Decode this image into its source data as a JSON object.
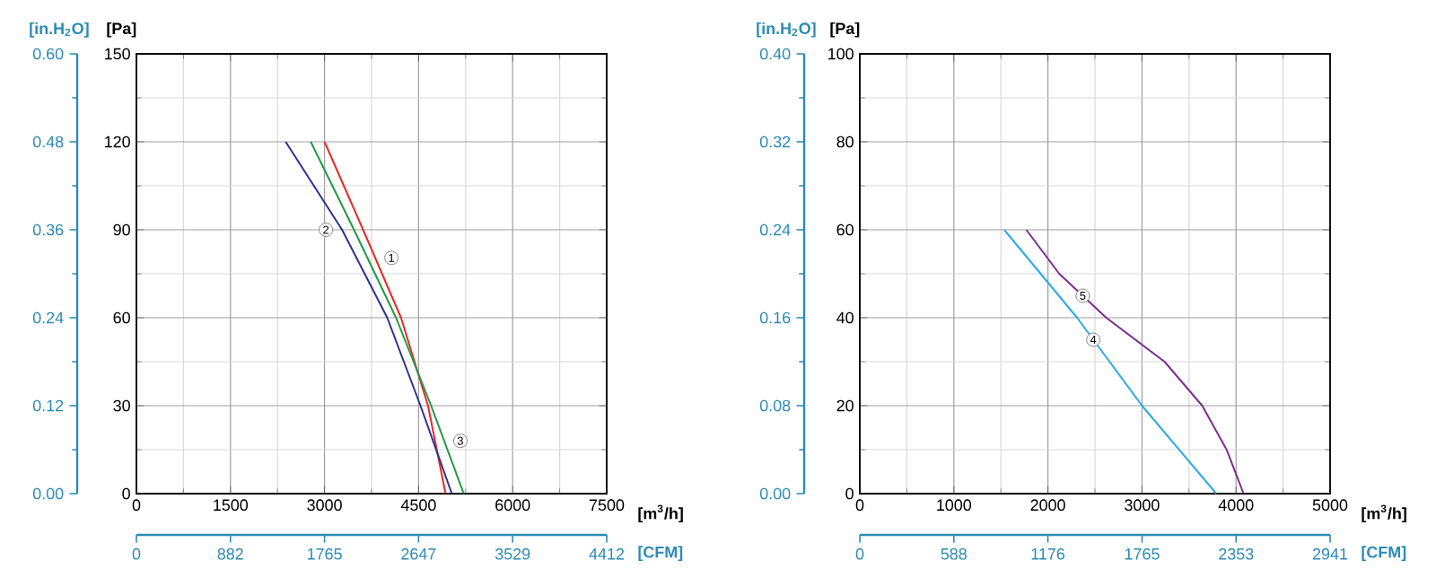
{
  "chart_data": [
    {
      "type": "line",
      "xlabel": "[m$^{3}$/h]",
      "ylabel": "[Pa]",
      "y2label": "[in.H$_{2}$O]",
      "x2label": "[CFM]",
      "xlim": [
        0,
        7500
      ],
      "xticks": [
        0,
        1500,
        3000,
        4500,
        6000,
        7500
      ],
      "ylim": [
        0,
        150
      ],
      "yticks": [
        0,
        30,
        60,
        90,
        120,
        150
      ],
      "y2lim": [
        0,
        0.6
      ],
      "y2ticks": [
        {
          "value": 0,
          "label": "0.00"
        },
        0.12,
        0.24,
        0.36,
        0.48,
        {
          "value": 0.6,
          "label": "0.60"
        }
      ],
      "x2lim": [
        0,
        4412
      ],
      "x2ticks": [
        0,
        882,
        1765,
        2647,
        3529,
        4412
      ],
      "grid": true,
      "series": [
        {
          "name": "1",
          "color": "#e8282b",
          "x": [
            3000,
            3615,
            4220,
            4650,
            4930
          ],
          "values": [
            120,
            90,
            60,
            30,
            0
          ]
        },
        {
          "name": "2",
          "color": "#2e3192",
          "x": [
            2380,
            3280,
            4000,
            4530,
            5030
          ],
          "values": [
            120,
            90,
            60,
            30,
            0
          ]
        },
        {
          "name": "3",
          "color": "#1f9a48",
          "x": [
            2780,
            3470,
            4140,
            4700,
            5220
          ],
          "values": [
            120,
            90,
            60,
            30,
            0
          ]
        }
      ]
    },
    {
      "type": "line",
      "xlabel": "[m$^{3}$/h]",
      "ylabel": "[Pa]",
      "y2label": "[in.H$_{2}$O]",
      "x2label": "[CFM]",
      "xlim": [
        0,
        5000
      ],
      "xticks": [
        0,
        1000,
        2000,
        3000,
        4000,
        5000
      ],
      "ylim": [
        0,
        100
      ],
      "yticks": [
        0,
        20,
        40,
        60,
        80,
        100
      ],
      "y2lim": [
        0,
        0.4
      ],
      "y2ticks": [
        {
          "value": 0,
          "label": "0.00"
        },
        0.08,
        0.16,
        0.24,
        0.32,
        {
          "value": 0.4,
          "label": "0.40"
        }
      ],
      "x2lim": [
        0,
        2941
      ],
      "x2ticks": [
        0,
        588,
        1176,
        1765,
        2353,
        2941
      ],
      "grid": true,
      "series": [
        {
          "name": "4",
          "color": "#29abe2",
          "x": [
            1535,
            2310,
            3000,
            3790
          ],
          "values": [
            60,
            40,
            20,
            0
          ]
        },
        {
          "name": "5",
          "color": "#7b2d8e",
          "x": [
            1770,
            2120,
            2620,
            3240,
            3640,
            3900,
            4080
          ],
          "values": [
            60,
            50,
            40,
            30,
            20,
            10,
            0
          ]
        }
      ]
    }
  ]
}
